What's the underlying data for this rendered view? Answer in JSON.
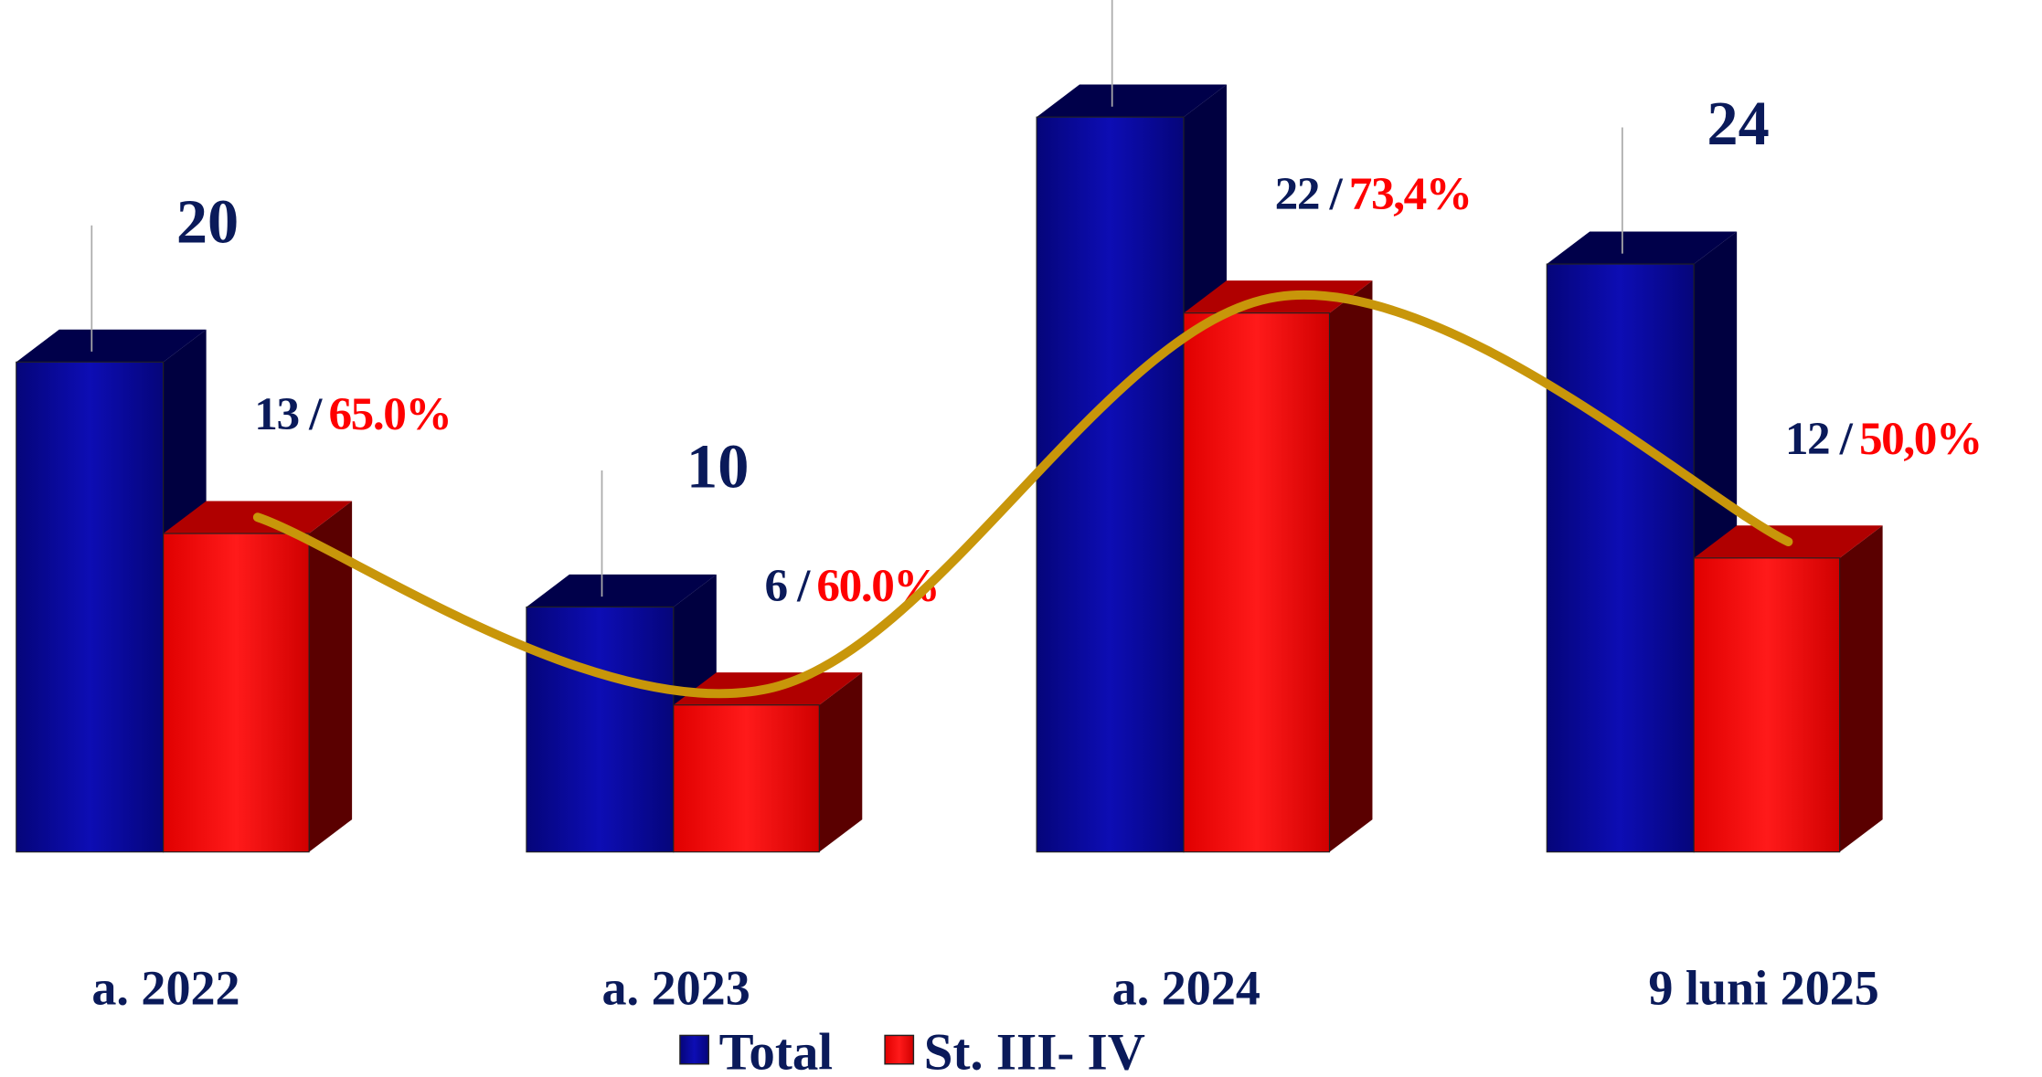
{
  "chart_data": {
    "type": "bar3d",
    "categories": [
      "a. 2022",
      "a. 2023",
      "a. 2024",
      "9 luni 2025"
    ],
    "series": [
      {
        "name": "Total",
        "color": "#0a0aa0",
        "values": [
          20,
          10,
          30,
          24
        ]
      },
      {
        "name": "St. III- IV",
        "color": "#ff0000",
        "values": [
          13,
          6,
          22,
          12
        ],
        "value_labels": [
          "13 /",
          "6 /",
          "22 /",
          "12 /"
        ],
        "percents": [
          65.0,
          60.0,
          73.4,
          50.0
        ],
        "percent_labels": [
          "65.0%",
          "60.0%",
          "73,4%",
          "50,0%"
        ]
      }
    ],
    "trend_color": "#c8960a",
    "ylim": [
      0,
      30
    ]
  }
}
